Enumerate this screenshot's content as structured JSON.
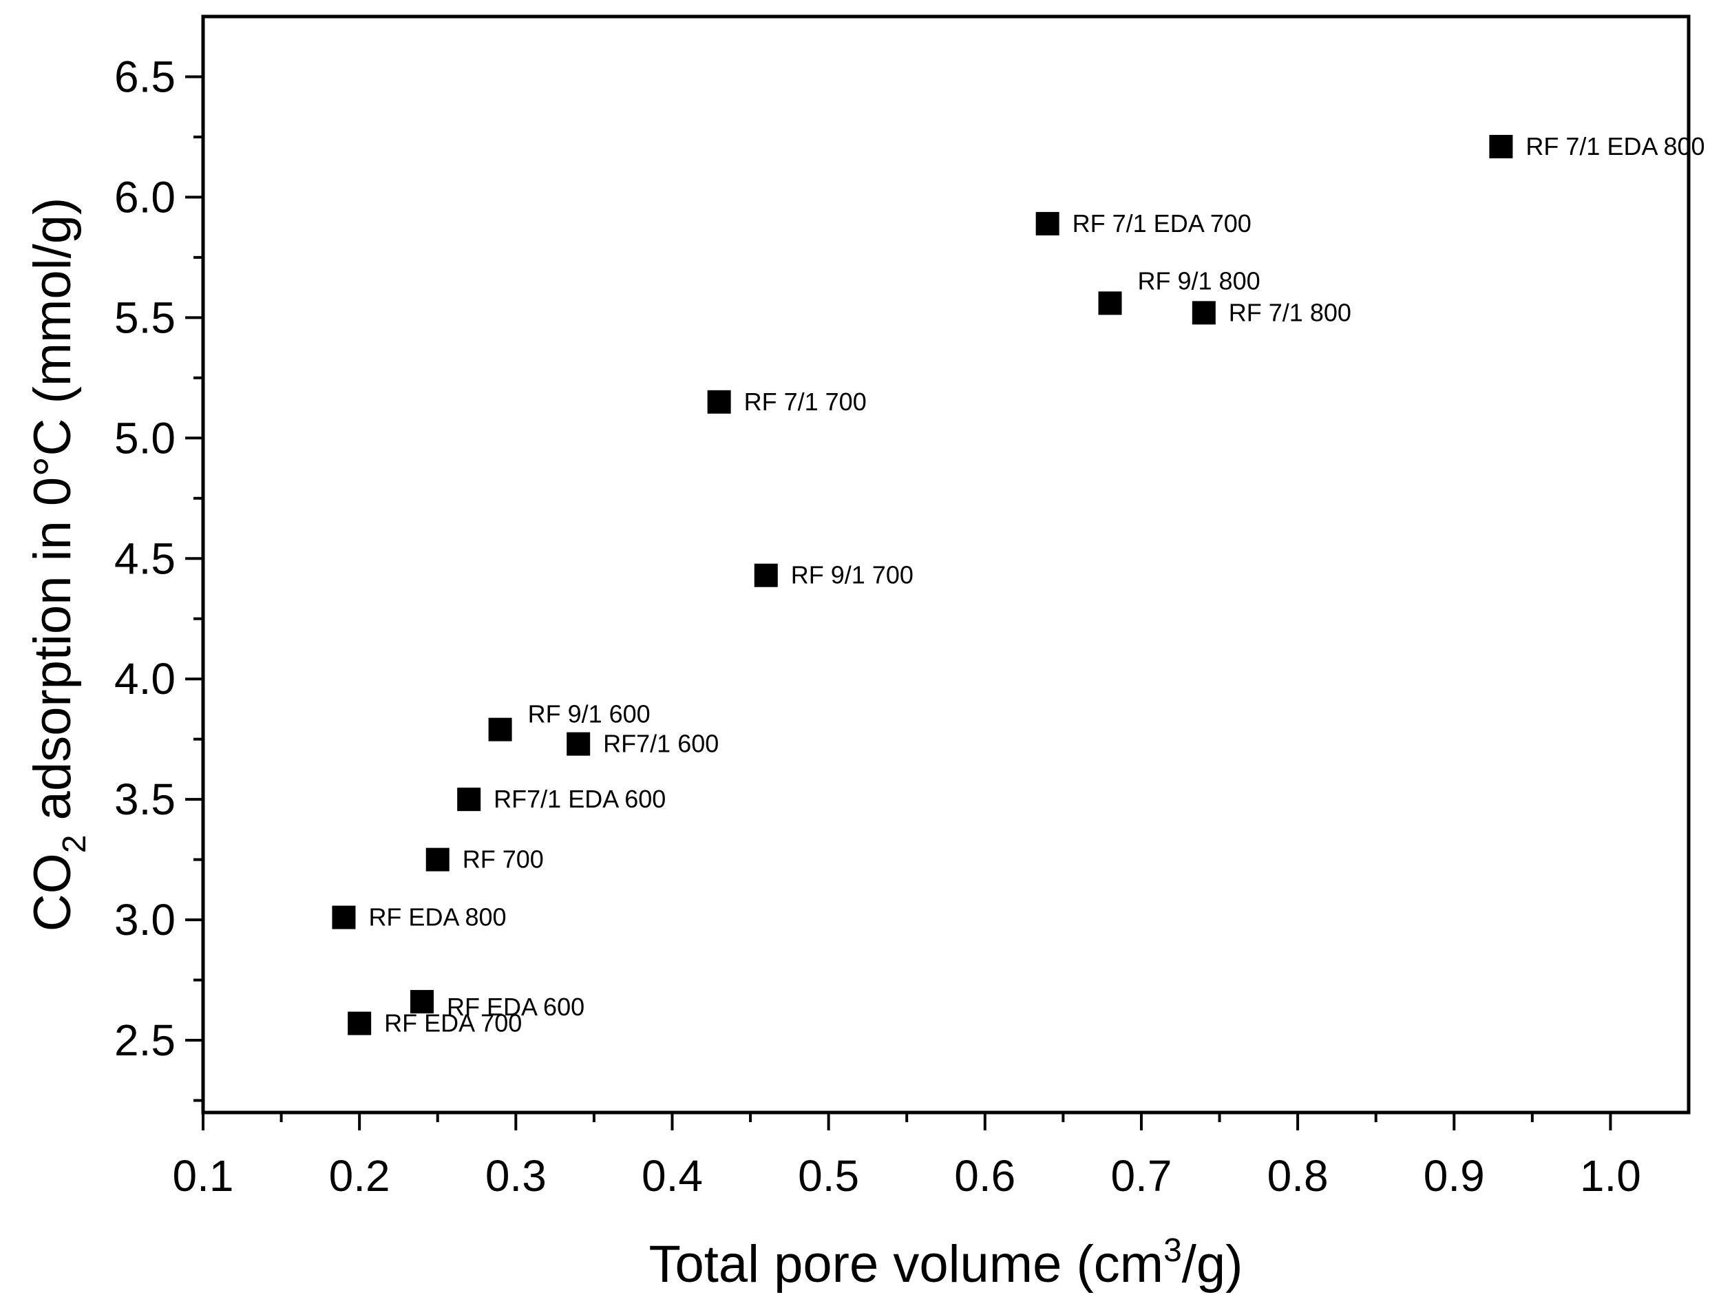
{
  "chart_data": {
    "type": "scatter",
    "title": "",
    "xlabel": {
      "prefix": "Total pore volume (cm",
      "sup": "3",
      "suffix": "/g)"
    },
    "ylabel": {
      "prefix": "CO",
      "sub": "2",
      "suffix": " adsorption in 0°C (mmol/g)"
    },
    "xlim": [
      0.1,
      1.05
    ],
    "ylim": [
      2.2,
      6.75
    ],
    "x_major_ticks": [
      0.1,
      0.2,
      0.3,
      0.4,
      0.5,
      0.6,
      0.7,
      0.8,
      0.9,
      1.0
    ],
    "x_tick_labels": [
      "0.1",
      "0.2",
      "0.3",
      "0.4",
      "0.5",
      "0.6",
      "0.7",
      "0.8",
      "0.9",
      "1.0"
    ],
    "y_major_ticks": [
      2.5,
      3.0,
      3.5,
      4.0,
      4.5,
      5.0,
      5.5,
      6.0,
      6.5
    ],
    "y_tick_labels": [
      "2.5",
      "3.0",
      "3.5",
      "4.0",
      "4.5",
      "5.0",
      "5.5",
      "6.0",
      "6.5"
    ],
    "grid": false,
    "legend": "none",
    "points": [
      {
        "label": "RF 7/1 EDA 800",
        "x": 0.93,
        "y": 6.21
      },
      {
        "label": "RF 7/1 EDA 700",
        "x": 0.64,
        "y": 5.89
      },
      {
        "label": "RF 9/1 800",
        "x": 0.68,
        "y": 5.56
      },
      {
        "label": "RF 7/1 800",
        "x": 0.74,
        "y": 5.52
      },
      {
        "label": "RF 7/1 700",
        "x": 0.43,
        "y": 5.15
      },
      {
        "label": "RF 9/1 700",
        "x": 0.46,
        "y": 4.43
      },
      {
        "label": "RF 9/1 600",
        "x": 0.29,
        "y": 3.79
      },
      {
        "label": "RF7/1 600",
        "x": 0.34,
        "y": 3.73
      },
      {
        "label": "RF7/1 EDA 600",
        "x": 0.27,
        "y": 3.5
      },
      {
        "label": "RF 700",
        "x": 0.25,
        "y": 3.25
      },
      {
        "label": "RF EDA 800",
        "x": 0.19,
        "y": 3.01
      },
      {
        "label": "RF EDA 600",
        "x": 0.24,
        "y": 2.66
      },
      {
        "label": "RF EDA 700",
        "x": 0.2,
        "y": 2.57
      }
    ]
  }
}
